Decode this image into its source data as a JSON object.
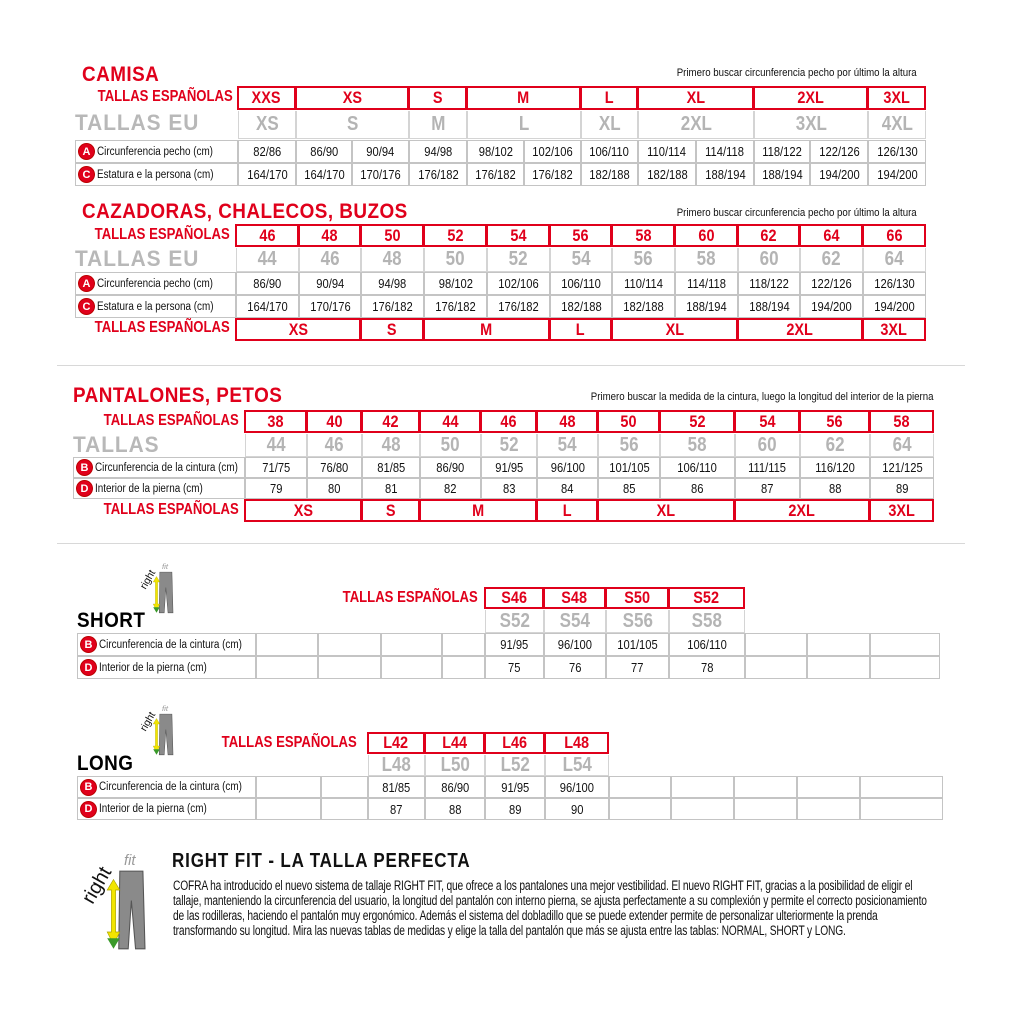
{
  "camisa": {
    "title": "CAMISA",
    "note": "Primero buscar circunferencia pecho por último la altura",
    "es_label": "TALLAS ESPAÑOLAS",
    "eu_label": "TALLAS EU",
    "es": [
      {
        "label": "XXS",
        "span": 1
      },
      {
        "label": "XS",
        "span": 2
      },
      {
        "label": "S",
        "span": 1
      },
      {
        "label": "M",
        "span": 2
      },
      {
        "label": "L",
        "span": 1
      },
      {
        "label": "XL",
        "span": 2
      },
      {
        "label": "2XL",
        "span": 2
      },
      {
        "label": "3XL",
        "span": 1
      }
    ],
    "eu": [
      {
        "label": "XS",
        "span": 1
      },
      {
        "label": "S",
        "span": 2
      },
      {
        "label": "M",
        "span": 1
      },
      {
        "label": "L",
        "span": 2
      },
      {
        "label": "XL",
        "span": 1
      },
      {
        "label": "2XL",
        "span": 2
      },
      {
        "label": "3XL",
        "span": 2
      },
      {
        "label": "4XL",
        "span": 1
      }
    ],
    "rows": [
      {
        "badge": "A",
        "label": "Circunferencia pecho (cm)",
        "values": [
          "82/86",
          "86/90",
          "90/94",
          "94/98",
          "98/102",
          "102/106",
          "106/110",
          "110/114",
          "114/118",
          "118/122",
          "122/126",
          "126/130"
        ]
      },
      {
        "badge": "C",
        "label": "Estatura e la persona (cm)",
        "values": [
          "164/170",
          "164/170",
          "170/176",
          "176/182",
          "176/182",
          "176/182",
          "182/188",
          "182/188",
          "188/194",
          "188/194",
          "194/200",
          "194/200"
        ]
      }
    ]
  },
  "cazadoras": {
    "title": "CAZADORAS, CHALECOS, BUZOS",
    "note": "Primero buscar circunferencia pecho por último la altura",
    "es_label": "TALLAS ESPAÑOLAS",
    "eu_label": "TALLAS EU",
    "es": [
      {
        "label": "46"
      },
      {
        "label": "48"
      },
      {
        "label": "50"
      },
      {
        "label": "52"
      },
      {
        "label": "54"
      },
      {
        "label": "56"
      },
      {
        "label": "58"
      },
      {
        "label": "60"
      },
      {
        "label": "62"
      },
      {
        "label": "64"
      },
      {
        "label": "66"
      }
    ],
    "eu": [
      {
        "label": "44"
      },
      {
        "label": "46"
      },
      {
        "label": "48"
      },
      {
        "label": "50"
      },
      {
        "label": "52"
      },
      {
        "label": "54"
      },
      {
        "label": "56"
      },
      {
        "label": "58"
      },
      {
        "label": "60"
      },
      {
        "label": "62"
      },
      {
        "label": "64"
      }
    ],
    "rows": [
      {
        "badge": "A",
        "label": "Circunferencia pecho (cm)",
        "values": [
          "86/90",
          "90/94",
          "94/98",
          "98/102",
          "102/106",
          "106/110",
          "110/114",
          "114/118",
          "118/122",
          "122/126",
          "126/130"
        ]
      },
      {
        "badge": "C",
        "label": "Estatura e la persona (cm)",
        "values": [
          "164/170",
          "170/176",
          "176/182",
          "176/182",
          "176/182",
          "182/188",
          "182/188",
          "188/194",
          "188/194",
          "194/200",
          "194/200"
        ]
      }
    ],
    "bottom_label": "TALLAS ESPAÑOLAS",
    "bottom": [
      {
        "label": "XS",
        "span": 2
      },
      {
        "label": "S",
        "span": 1
      },
      {
        "label": "M",
        "span": 2
      },
      {
        "label": "L",
        "span": 1
      },
      {
        "label": "XL",
        "span": 2
      },
      {
        "label": "2XL",
        "span": 2
      },
      {
        "label": "3XL",
        "span": 1
      }
    ]
  },
  "pantalones": {
    "title": "PANTALONES, PETOS",
    "note": "Primero buscar la medida de la cintura, luego la longitud del interior de la pierna",
    "es_label": "TALLAS ESPAÑOLAS",
    "eu_label": "TALLAS",
    "es": [
      {
        "label": "38"
      },
      {
        "label": "40"
      },
      {
        "label": "42"
      },
      {
        "label": "44"
      },
      {
        "label": "46"
      },
      {
        "label": "48"
      },
      {
        "label": "50"
      },
      {
        "label": "52"
      },
      {
        "label": "54"
      },
      {
        "label": "56"
      },
      {
        "label": "58"
      }
    ],
    "eu": [
      {
        "label": "44"
      },
      {
        "label": "46"
      },
      {
        "label": "48"
      },
      {
        "label": "50"
      },
      {
        "label": "52"
      },
      {
        "label": "54"
      },
      {
        "label": "56"
      },
      {
        "label": "58"
      },
      {
        "label": "60"
      },
      {
        "label": "62"
      },
      {
        "label": "64"
      }
    ],
    "rows": [
      {
        "badge": "B",
        "label": "Circunferencia de la cintura (cm)",
        "values": [
          "71/75",
          "76/80",
          "81/85",
          "86/90",
          "91/95",
          "96/100",
          "101/105",
          "106/110",
          "111/115",
          "116/120",
          "121/125"
        ]
      },
      {
        "badge": "D",
        "label": "Interior de la pierna (cm)",
        "values": [
          "79",
          "80",
          "81",
          "82",
          "83",
          "84",
          "85",
          "86",
          "87",
          "88",
          "89"
        ]
      }
    ],
    "bottom_label": "TALLAS ESPAÑOLAS",
    "bottom": [
      {
        "label": "XS",
        "span": 2
      },
      {
        "label": "S",
        "span": 1
      },
      {
        "label": "M",
        "span": 2
      },
      {
        "label": "L",
        "span": 1
      },
      {
        "label": "XL",
        "span": 2
      },
      {
        "label": "2XL",
        "span": 2
      },
      {
        "label": "3XL",
        "span": 1
      }
    ]
  },
  "short": {
    "title": "SHORT",
    "logo_text": "rightfit",
    "es_label": "TALLAS ESPAÑOLAS",
    "es": [
      {
        "label": "S46"
      },
      {
        "label": "S48"
      },
      {
        "label": "S50"
      },
      {
        "label": "S52"
      }
    ],
    "eu": [
      {
        "label": "S52"
      },
      {
        "label": "S54"
      },
      {
        "label": "S56"
      },
      {
        "label": "S58"
      }
    ],
    "rows": [
      {
        "badge": "B",
        "label": "Circunferencia de la cintura (cm)",
        "values": [
          "91/95",
          "96/100",
          "101/105",
          "106/110"
        ]
      },
      {
        "badge": "D",
        "label": "Interior de la pierna (cm)",
        "values": [
          "75",
          "76",
          "77",
          "78"
        ]
      }
    ]
  },
  "long": {
    "title": "LONG",
    "logo_text": "rightfit",
    "es_label": "TALLAS ESPAÑOLAS",
    "es": [
      {
        "label": "L42"
      },
      {
        "label": "L44"
      },
      {
        "label": "L46"
      },
      {
        "label": "L48"
      }
    ],
    "eu": [
      {
        "label": "L48"
      },
      {
        "label": "L50"
      },
      {
        "label": "L52"
      },
      {
        "label": "L54"
      }
    ],
    "rows": [
      {
        "badge": "B",
        "label": "Circunferencia de la cintura (cm)",
        "values": [
          "81/85",
          "86/90",
          "91/95",
          "96/100"
        ]
      },
      {
        "badge": "D",
        "label": "Interior de la pierna (cm)",
        "values": [
          "87",
          "88",
          "89",
          "90"
        ]
      }
    ]
  },
  "rightfit": {
    "logo_text": "rightfit",
    "title": "RIGHT FIT - LA TALLA PERFECTA",
    "text": "COFRA ha introducido el nuevo sistema de tallaje RIGHT FIT, que ofrece a los pantalones una mejor vestibilidad. El nuevo RIGHT FIT, gracias a la posibilidad de eligir el tallaje, manteniendo la circunferencia del usuario, la longitud del pantalón con interno pierna, se ajusta perfectamente a su complexión y permite el correcto posicionamiento de las rodilleras, haciendo el pantalón muy ergonómico. Además el sistema del dobladillo que se puede extender permite de personalizar ulteriormente la prenda transformando su longitud. Mira las nuevas tablas de medidas y elige la talla del pantalón que más se ajusta entre las tablas: NORMAL, SHORT y LONG."
  },
  "colors": {
    "accent": "#e0001b",
    "eu_gray": "#b4b4b4",
    "grid": "#c4c4c4"
  },
  "icons": {
    "badge": "letter-circle-icon",
    "logo": "rightfit-pants-logo-icon"
  }
}
